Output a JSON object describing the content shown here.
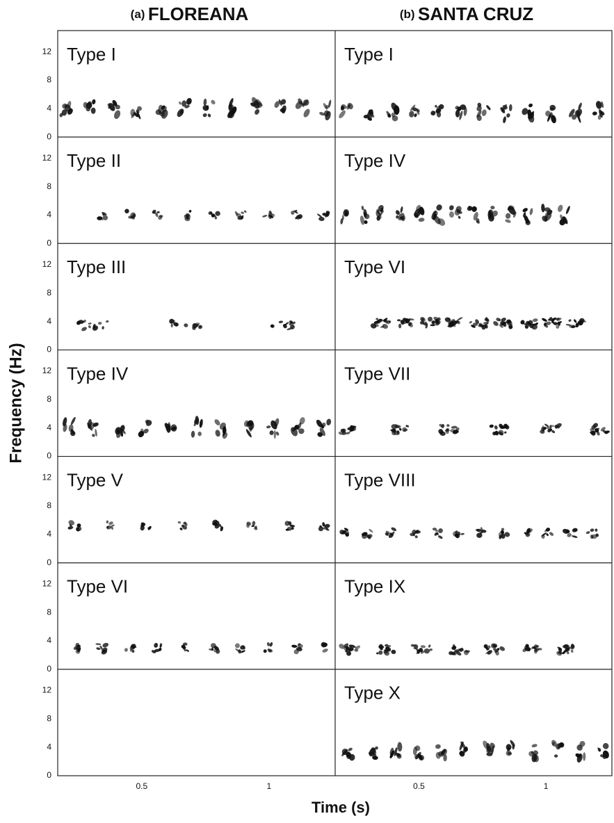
{
  "figure": {
    "y_axis_label": "Frequency (Hz)",
    "x_axis_label": "Time (s)",
    "ylim": [
      0,
      15
    ],
    "yticks": [
      0,
      4,
      8,
      12
    ],
    "xlim": [
      0.17,
      1.26
    ],
    "xticks": [
      0.5,
      1
    ],
    "panels": [
      {
        "letter": "(a)",
        "name": "FLOREANA",
        "types": [
          "Type I",
          "Type II",
          "Type III",
          "Type IV",
          "Type V",
          "Type VI",
          null
        ]
      },
      {
        "letter": "(b)",
        "name": "SANTA CRUZ",
        "types": [
          "Type I",
          "Type IV",
          "Type VI",
          "Type VII",
          "Type VIII",
          "Type IX",
          "Type X"
        ]
      }
    ]
  }
}
